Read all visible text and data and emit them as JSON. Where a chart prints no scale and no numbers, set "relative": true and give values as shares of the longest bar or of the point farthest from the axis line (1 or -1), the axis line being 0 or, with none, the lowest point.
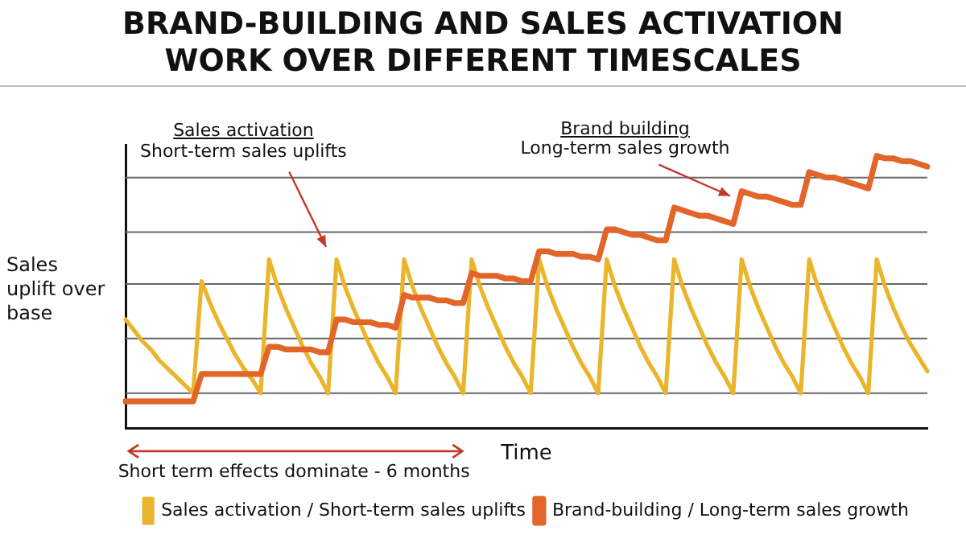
{
  "chart_data": {
    "type": "line",
    "title": "BRAND-BUILDING AND SALES ACTIVATION WORK OVER DIFFERENT TIMESCALES",
    "xlabel": "Time",
    "ylabel": "Sales uplift over base",
    "relative": true,
    "ref_lines": [
      {
        "axis": "y",
        "value": 0.13,
        "color": "#666666"
      },
      {
        "axis": "y",
        "value": 0.33,
        "color": "#666666"
      },
      {
        "axis": "y",
        "value": 0.53,
        "color": "#666666"
      },
      {
        "axis": "y",
        "value": 0.72,
        "color": "#666666"
      },
      {
        "axis": "y",
        "value": 0.92,
        "color": "#666666"
      }
    ],
    "legend": "bottom",
    "categories": [
      null,
      null,
      null,
      null,
      null,
      null,
      null,
      null,
      null,
      null,
      null,
      null,
      null,
      null,
      null,
      null,
      null,
      null,
      null,
      null,
      null,
      null,
      null,
      null,
      null,
      null,
      null,
      null,
      null,
      null,
      null,
      null,
      null,
      null,
      null,
      null,
      null,
      null,
      null,
      null,
      null,
      null,
      null,
      null,
      null,
      null,
      null,
      null,
      null,
      null,
      null,
      null,
      null,
      null,
      null,
      null,
      null,
      null,
      null,
      null,
      null,
      null,
      null,
      null,
      null,
      null,
      null,
      null,
      null,
      null,
      null,
      null,
      null,
      null,
      null,
      null,
      null,
      null,
      null,
      null,
      null,
      null,
      null,
      null,
      null,
      null,
      null,
      null,
      null,
      null,
      null,
      null,
      null,
      null,
      null,
      null
    ],
    "series": [
      {
        "name": "Sales activation / Short-term sales uplifts",
        "color": "#ebb52b",
        "values": [
          0.4,
          0.36,
          0.32,
          0.29,
          0.25,
          0.22,
          0.19,
          0.16,
          0.13,
          0.54,
          0.46,
          0.39,
          0.33,
          0.27,
          0.22,
          0.18,
          0.13,
          0.62,
          0.52,
          0.44,
          0.37,
          0.3,
          0.24,
          0.19,
          0.13,
          0.62,
          0.52,
          0.44,
          0.37,
          0.3,
          0.24,
          0.19,
          0.13,
          0.62,
          0.52,
          0.44,
          0.37,
          0.3,
          0.24,
          0.19,
          0.13,
          0.62,
          0.52,
          0.44,
          0.37,
          0.3,
          0.24,
          0.19,
          0.13,
          0.62,
          0.52,
          0.44,
          0.37,
          0.3,
          0.24,
          0.19,
          0.13,
          0.62,
          0.52,
          0.44,
          0.37,
          0.3,
          0.24,
          0.19,
          0.13,
          0.62,
          0.52,
          0.44,
          0.37,
          0.3,
          0.24,
          0.19,
          0.13,
          0.62,
          0.52,
          0.44,
          0.37,
          0.3,
          0.24,
          0.19,
          0.13,
          0.62,
          0.52,
          0.44,
          0.37,
          0.3,
          0.24,
          0.19,
          0.13,
          0.62,
          0.52,
          0.44,
          0.37,
          0.31,
          0.26,
          0.21
        ]
      },
      {
        "name": "Brand-building / Long-term sales growth",
        "color": "#e2652a",
        "values": [
          0.1,
          0.1,
          0.1,
          0.1,
          0.1,
          0.1,
          0.1,
          0.1,
          0.1,
          0.2,
          0.2,
          0.2,
          0.2,
          0.2,
          0.2,
          0.2,
          0.2,
          0.3,
          0.3,
          0.29,
          0.29,
          0.29,
          0.29,
          0.28,
          0.28,
          0.4,
          0.4,
          0.39,
          0.39,
          0.39,
          0.38,
          0.38,
          0.37,
          0.49,
          0.48,
          0.48,
          0.48,
          0.47,
          0.47,
          0.46,
          0.46,
          0.57,
          0.56,
          0.56,
          0.56,
          0.55,
          0.55,
          0.54,
          0.54,
          0.65,
          0.65,
          0.64,
          0.64,
          0.64,
          0.63,
          0.63,
          0.62,
          0.73,
          0.73,
          0.72,
          0.71,
          0.71,
          0.7,
          0.69,
          0.69,
          0.81,
          0.8,
          0.79,
          0.78,
          0.78,
          0.77,
          0.76,
          0.75,
          0.87,
          0.86,
          0.85,
          0.85,
          0.84,
          0.83,
          0.82,
          0.82,
          0.94,
          0.93,
          0.92,
          0.92,
          0.91,
          0.9,
          0.89,
          0.88,
          1.0,
          0.99,
          0.99,
          0.98,
          0.98,
          0.97,
          0.96
        ]
      }
    ],
    "annotations": [
      "Sales activation",
      "Short-term sales uplifts",
      "Brand building",
      "Long-term sales growth",
      "Short term effects dominate - 6 months"
    ]
  }
}
